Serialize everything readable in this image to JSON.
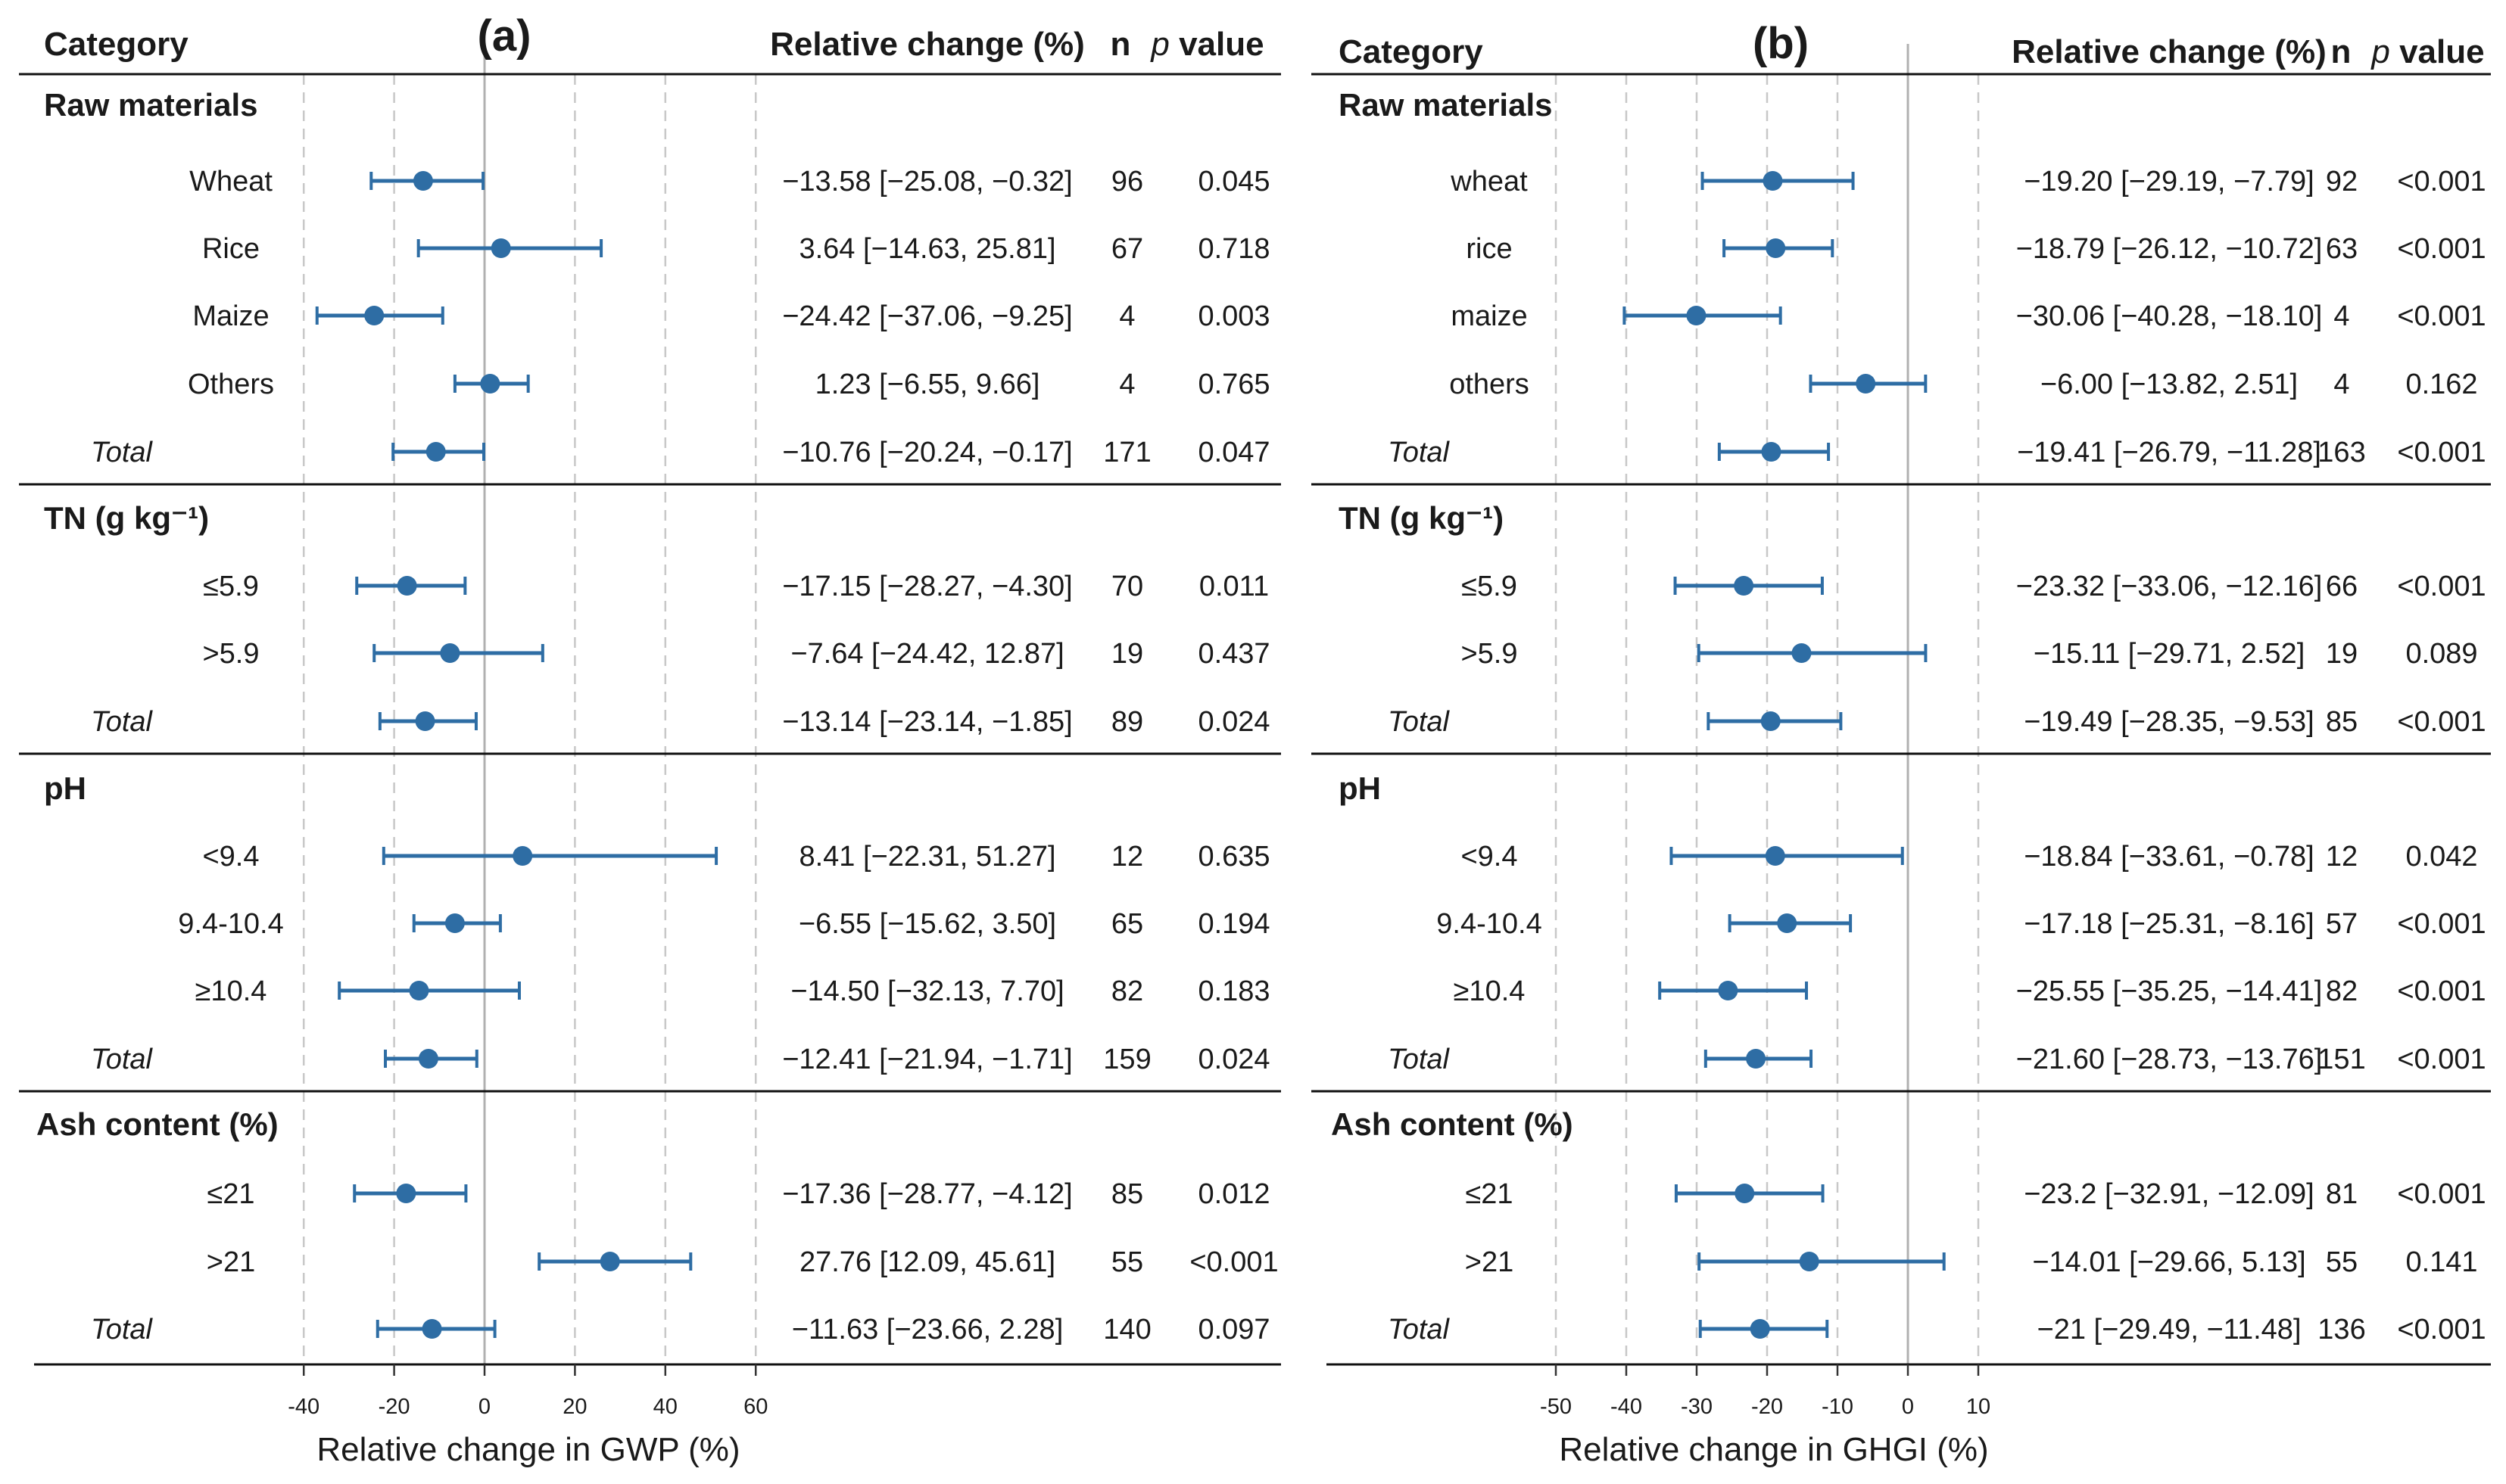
{
  "chart_data": [
    {
      "type": "forest",
      "panel": "(a)",
      "headers": {
        "category": "Category",
        "relative_change": "Relative change (%)",
        "n": "n",
        "p_italic": "p",
        "p_rest": " value"
      },
      "xlabel": "Relative change in GWP (%)",
      "xlim": [
        -40,
        60
      ],
      "xticks": [
        -40,
        -20,
        0,
        20,
        40,
        60
      ],
      "groups": [
        {
          "name": "Raw materials",
          "rows": [
            {
              "label": "Wheat",
              "est": -13.58,
              "lo": -25.08,
              "hi": -0.32,
              "ci_text": "−13.58 [−25.08, −0.32]",
              "n": "96",
              "p": "0.045"
            },
            {
              "label": "Rice",
              "est": 3.64,
              "lo": -14.63,
              "hi": 25.81,
              "ci_text": "3.64 [−14.63, 25.81]",
              "n": "67",
              "p": "0.718"
            },
            {
              "label": "Maize",
              "est": -24.42,
              "lo": -37.06,
              "hi": -9.25,
              "ci_text": "−24.42 [−37.06, −9.25]",
              "n": "4",
              "p": "0.003"
            },
            {
              "label": "Others",
              "est": 1.23,
              "lo": -6.55,
              "hi": 9.66,
              "ci_text": "1.23 [−6.55, 9.66]",
              "n": "4",
              "p": "0.765"
            },
            {
              "label": "Total",
              "total": true,
              "est": -10.76,
              "lo": -20.24,
              "hi": -0.17,
              "ci_text": "−10.76 [−20.24, −0.17]",
              "n": "171",
              "p": "0.047"
            }
          ]
        },
        {
          "name": "TN (g kg⁻¹)",
          "rows": [
            {
              "label": "≤5.9",
              "est": -17.15,
              "lo": -28.27,
              "hi": -4.3,
              "ci_text": "−17.15 [−28.27, −4.30]",
              "n": "70",
              "p": "0.011"
            },
            {
              "label": ">5.9",
              "est": -7.64,
              "lo": -24.42,
              "hi": 12.87,
              "ci_text": "−7.64 [−24.42, 12.87]",
              "n": "19",
              "p": "0.437"
            },
            {
              "label": "Total",
              "total": true,
              "est": -13.14,
              "lo": -23.14,
              "hi": -1.85,
              "ci_text": "−13.14 [−23.14, −1.85]",
              "n": "89",
              "p": "0.024"
            }
          ]
        },
        {
          "name": "pH",
          "rows": [
            {
              "label": "<9.4",
              "est": 8.41,
              "lo": -22.31,
              "hi": 51.27,
              "ci_text": "8.41 [−22.31, 51.27]",
              "n": "12",
              "p": "0.635"
            },
            {
              "label": "9.4-10.4",
              "est": -6.55,
              "lo": -15.62,
              "hi": 3.5,
              "ci_text": "−6.55 [−15.62, 3.50]",
              "n": "65",
              "p": "0.194"
            },
            {
              "label": "≥10.4",
              "est": -14.5,
              "lo": -32.13,
              "hi": 7.7,
              "ci_text": "−14.50 [−32.13, 7.70]",
              "n": "82",
              "p": "0.183"
            },
            {
              "label": "Total",
              "total": true,
              "est": -12.41,
              "lo": -21.94,
              "hi": -1.71,
              "ci_text": "−12.41 [−21.94, −1.71]",
              "n": "159",
              "p": "0.024"
            }
          ]
        },
        {
          "name": "Ash content (%)",
          "rows": [
            {
              "label": "≤21",
              "est": -17.36,
              "lo": -28.77,
              "hi": -4.12,
              "ci_text": "−17.36 [−28.77, −4.12]",
              "n": "85",
              "p": "0.012"
            },
            {
              "label": ">21",
              "est": 27.76,
              "lo": 12.09,
              "hi": 45.61,
              "ci_text": "27.76 [12.09, 45.61]",
              "n": "55",
              "p": "<0.001"
            },
            {
              "label": "Total",
              "total": true,
              "est": -11.63,
              "lo": -23.66,
              "hi": 2.28,
              "ci_text": "−11.63 [−23.66, 2.28]",
              "n": "140",
              "p": "0.097"
            }
          ]
        }
      ]
    },
    {
      "type": "forest",
      "panel": "(b)",
      "headers": {
        "category": "Category",
        "relative_change": "Relative change (%)",
        "n": "n",
        "p_italic": "p",
        "p_rest": " value"
      },
      "xlabel": "Relative change in GHGI (%)",
      "xlim": [
        -50,
        10
      ],
      "xticks": [
        -50,
        -40,
        -30,
        -20,
        -10,
        0,
        10
      ],
      "groups": [
        {
          "name": "Raw materials",
          "rows": [
            {
              "label": "wheat",
              "est": -19.2,
              "lo": -29.19,
              "hi": -7.79,
              "ci_text": "−19.20 [−29.19, −7.79]",
              "n": "92",
              "p": "<0.001"
            },
            {
              "label": "rice",
              "est": -18.79,
              "lo": -26.12,
              "hi": -10.72,
              "ci_text": "−18.79 [−26.12, −10.72]",
              "n": "63",
              "p": "<0.001"
            },
            {
              "label": "maize",
              "est": -30.06,
              "lo": -40.28,
              "hi": -18.1,
              "ci_text": "−30.06 [−40.28, −18.10]",
              "n": "4",
              "p": "<0.001"
            },
            {
              "label": "others",
              "est": -6.0,
              "lo": -13.82,
              "hi": 2.51,
              "ci_text": "−6.00 [−13.82, 2.51]",
              "n": "4",
              "p": "0.162"
            },
            {
              "label": "Total",
              "total": true,
              "est": -19.41,
              "lo": -26.79,
              "hi": -11.28,
              "ci_text": "−19.41 [−26.79, −11.28]",
              "n": "163",
              "p": "<0.001"
            }
          ]
        },
        {
          "name": "TN (g kg⁻¹)",
          "rows": [
            {
              "label": "≤5.9",
              "est": -23.32,
              "lo": -33.06,
              "hi": -12.16,
              "ci_text": "−23.32 [−33.06, −12.16]",
              "n": "66",
              "p": "<0.001"
            },
            {
              "label": ">5.9",
              "est": -15.11,
              "lo": -29.71,
              "hi": 2.52,
              "ci_text": "−15.11 [−29.71, 2.52]",
              "n": "19",
              "p": "0.089"
            },
            {
              "label": "Total",
              "total": true,
              "est": -19.49,
              "lo": -28.35,
              "hi": -9.53,
              "ci_text": "−19.49 [−28.35, −9.53]",
              "n": "85",
              "p": "<0.001"
            }
          ]
        },
        {
          "name": "pH",
          "rows": [
            {
              "label": "<9.4",
              "est": -18.84,
              "lo": -33.61,
              "hi": -0.78,
              "ci_text": "−18.84 [−33.61, −0.78]",
              "n": "12",
              "p": "0.042"
            },
            {
              "label": "9.4-10.4",
              "est": -17.18,
              "lo": -25.31,
              "hi": -8.16,
              "ci_text": "−17.18 [−25.31, −8.16]",
              "n": "57",
              "p": "<0.001"
            },
            {
              "label": "≥10.4",
              "est": -25.55,
              "lo": -35.25,
              "hi": -14.41,
              "ci_text": "−25.55 [−35.25, −14.41]",
              "n": "82",
              "p": "<0.001"
            },
            {
              "label": "Total",
              "total": true,
              "est": -21.6,
              "lo": -28.73,
              "hi": -13.76,
              "ci_text": "−21.60 [−28.73, −13.76]",
              "n": "151",
              "p": "<0.001"
            }
          ]
        },
        {
          "name": "Ash content (%)",
          "rows": [
            {
              "label": "≤21",
              "est": -23.2,
              "lo": -32.91,
              "hi": -12.09,
              "ci_text": "−23.2 [−32.91, −12.09]",
              "n": "81",
              "p": "<0.001"
            },
            {
              "label": ">21",
              "est": -14.01,
              "lo": -29.66,
              "hi": 5.13,
              "ci_text": "−14.01 [−29.66, 5.13]",
              "n": "55",
              "p": "0.141"
            },
            {
              "label": "Total",
              "total": true,
              "est": -21,
              "lo": -29.49,
              "hi": -11.48,
              "ci_text": "−21 [−29.49, −11.48]",
              "n": "136",
              "p": "<0.001"
            }
          ]
        }
      ]
    }
  ],
  "style": {
    "point_color": "#2e6da4",
    "line_color": "#2e6da4",
    "zero_line_color": "#b0b0b0",
    "grid_color": "#c8c8c8",
    "rule_color": "#111111"
  }
}
